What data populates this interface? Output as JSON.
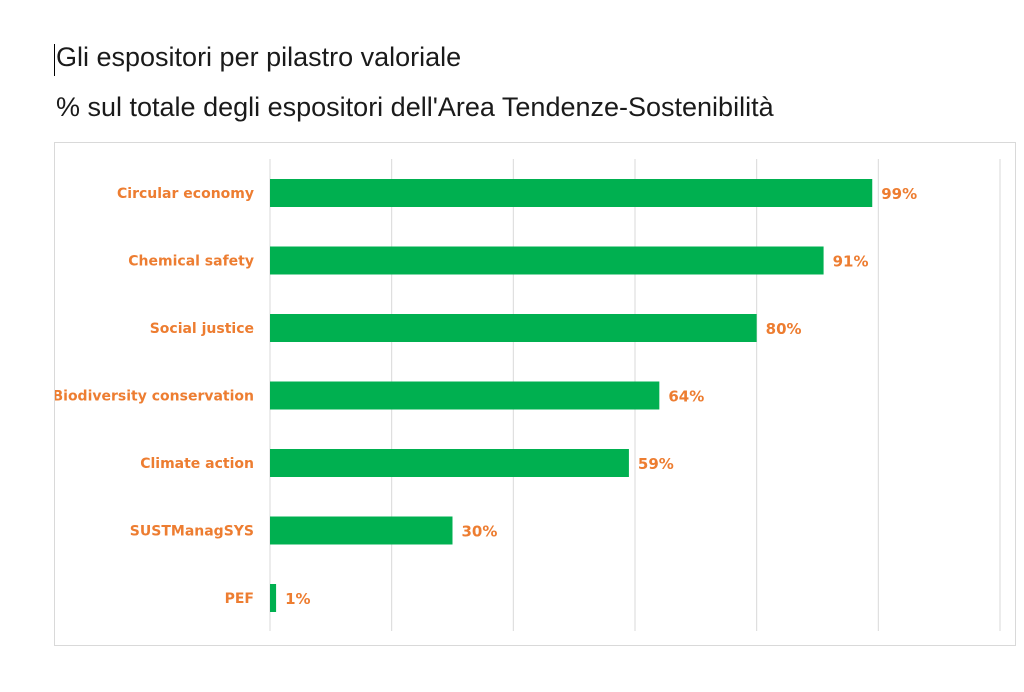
{
  "header": {
    "title": "Gli espositori per pilastro valoriale",
    "subtitle": "% sul totale degli espositori dell'Area Tendenze-Sostenibilità"
  },
  "chart_data": {
    "type": "bar",
    "orientation": "horizontal",
    "categories": [
      "Circular economy",
      "Chemical safety",
      "Social justice",
      "Biodiversity conservation",
      "Climate action",
      "SUSTManagSYS",
      "PEF"
    ],
    "values": [
      99,
      91,
      80,
      64,
      59,
      30,
      1
    ],
    "value_labels": [
      "99%",
      "91%",
      "80%",
      "64%",
      "59%",
      "30%",
      "1%"
    ],
    "xlim": [
      0,
      120
    ],
    "grid": true,
    "colors": {
      "bar": "#00b050",
      "label": "#ed7d31",
      "grid": "#d9d9d9"
    }
  }
}
